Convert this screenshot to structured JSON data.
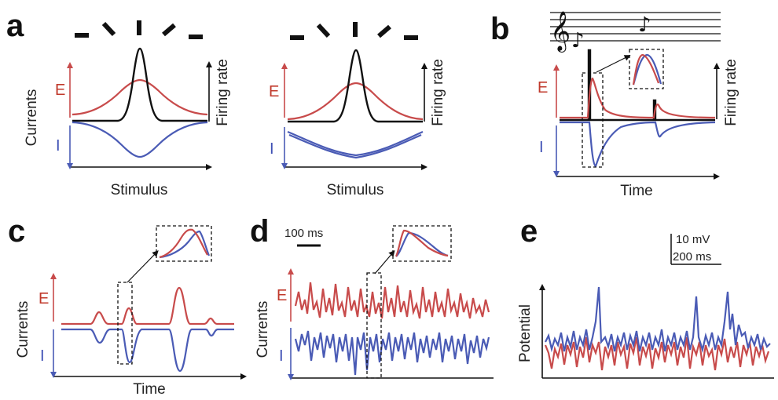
{
  "panels": {
    "a": {
      "letter": "a",
      "left": {
        "e_label": "E",
        "i_label": "I",
        "y_left_label": "Currents",
        "y_right_label": "Firing rate",
        "x_label": "Stimulus"
      },
      "right": {
        "e_label": "E",
        "i_label": "I",
        "y_right_label": "Firing rate",
        "x_label": "Stimulus"
      }
    },
    "b": {
      "letter": "b",
      "e_label": "E",
      "i_label": "I",
      "y_right_label": "Firing rate",
      "x_label": "Time"
    },
    "c": {
      "letter": "c",
      "e_label": "E",
      "i_label": "I",
      "y_left_label": "Currents",
      "x_label": "Time"
    },
    "d": {
      "letter": "d",
      "e_label": "E",
      "i_label": "I",
      "y_left_label": "Currents",
      "scale_label": "100 ms"
    },
    "e": {
      "letter": "e",
      "y_left_label": "Potential",
      "scale_v_label": "10 mV",
      "scale_t_label": "200 ms"
    }
  },
  "colors": {
    "excitatory": "#c84b4b",
    "inhibitory": "#4a5bb5",
    "firing_rate": "#111111"
  }
}
